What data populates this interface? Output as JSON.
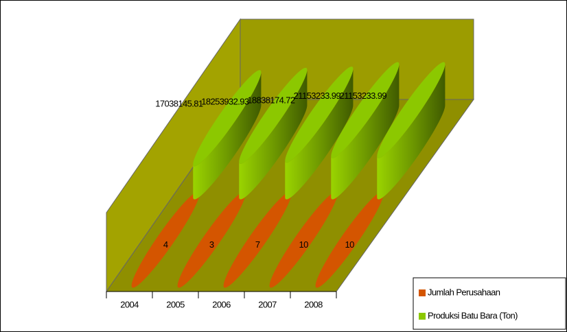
{
  "chart_data": {
    "type": "bar3d",
    "categories": [
      "2004",
      "2005",
      "2006",
      "2007",
      "2008"
    ],
    "series": [
      {
        "name": "Jumlah Perusahaan",
        "color": "#d45500",
        "values": [
          4,
          3,
          7,
          10,
          10
        ]
      },
      {
        "name": "Produksi Batu Bara (Ton)",
        "color": "#8cc800",
        "values": [
          17038145.81,
          18253932.93,
          18838174.72,
          21153233.99,
          21153233.99
        ]
      }
    ],
    "legend": "bottom-right"
  }
}
